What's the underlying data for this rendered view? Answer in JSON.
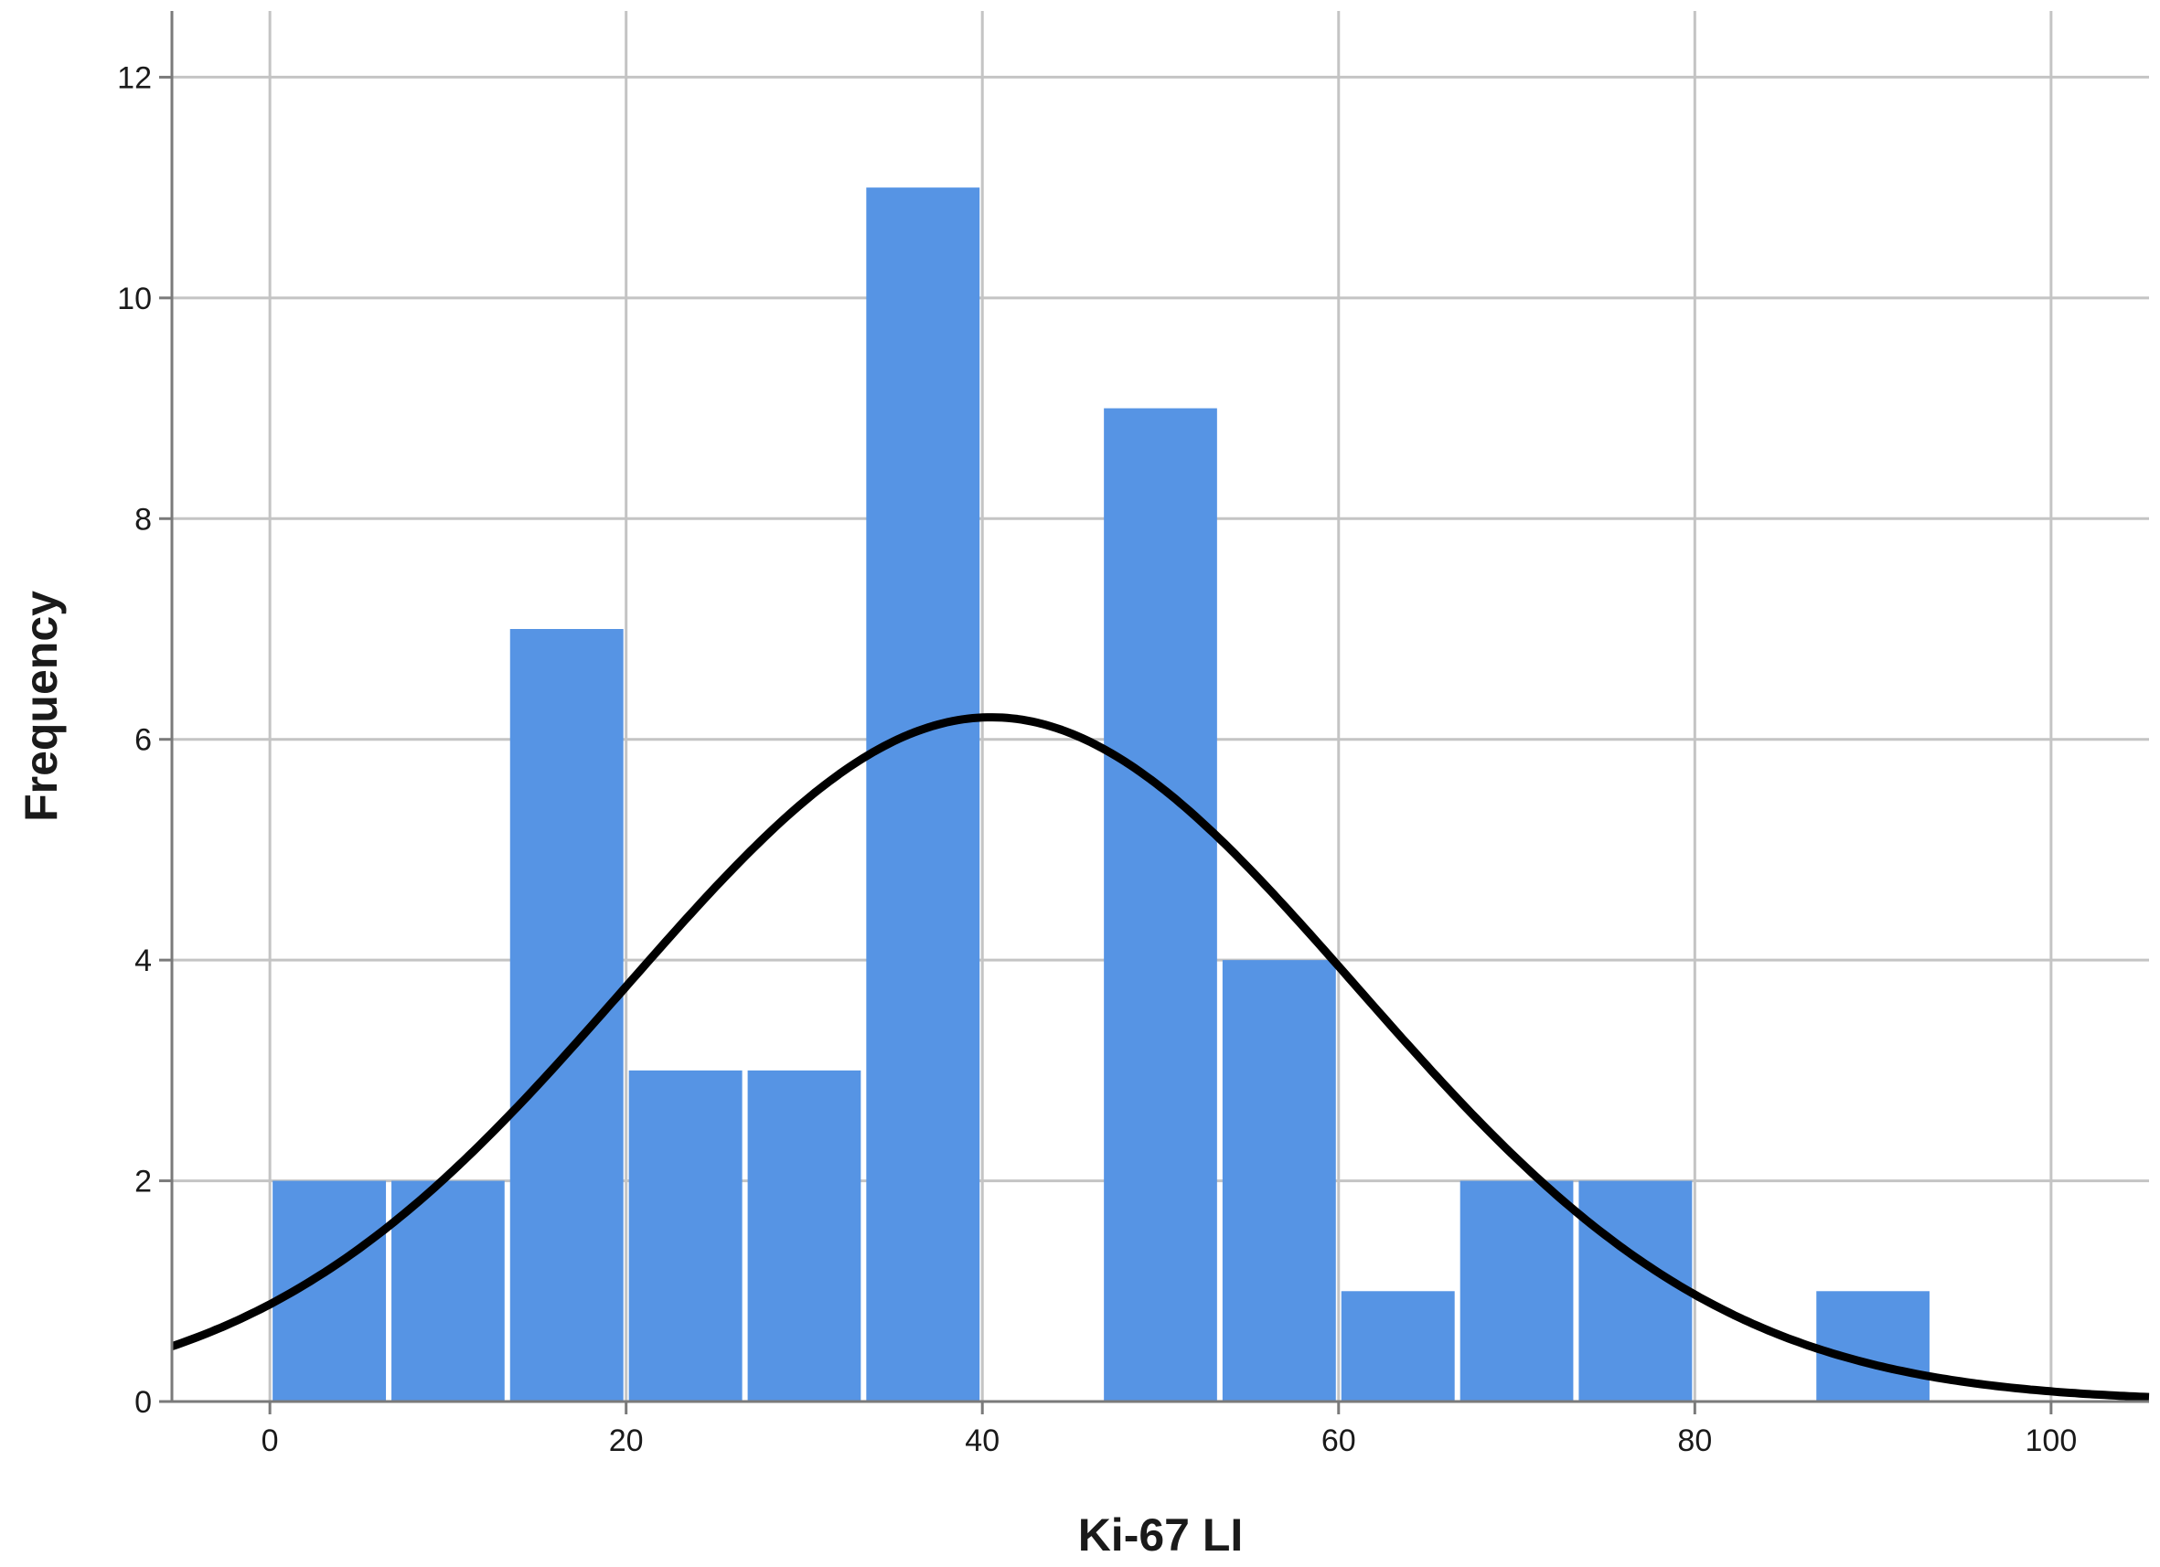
{
  "chart_data": {
    "type": "bar",
    "subtype": "histogram",
    "xlabel": "Ki-67 LI",
    "ylabel": "Frequency",
    "xlim": [
      -5.5,
      105.5
    ],
    "ylim": [
      0,
      12.6
    ],
    "xticks": [
      0,
      20,
      40,
      60,
      80,
      100
    ],
    "yticks": [
      0,
      2,
      4,
      6,
      8,
      10,
      12
    ],
    "grid": true,
    "bin_width": 6.67,
    "bins": [
      {
        "x0": 0,
        "x1": 6.67,
        "count": 2
      },
      {
        "x0": 6.67,
        "x1": 13.33,
        "count": 2
      },
      {
        "x0": 13.33,
        "x1": 20,
        "count": 7
      },
      {
        "x0": 20,
        "x1": 26.67,
        "count": 3
      },
      {
        "x0": 26.67,
        "x1": 33.33,
        "count": 3
      },
      {
        "x0": 33.33,
        "x1": 40,
        "count": 11
      },
      {
        "x0": 40,
        "x1": 46.67,
        "count": 0
      },
      {
        "x0": 46.67,
        "x1": 53.33,
        "count": 9
      },
      {
        "x0": 53.33,
        "x1": 60,
        "count": 4
      },
      {
        "x0": 60,
        "x1": 66.67,
        "count": 1
      },
      {
        "x0": 66.67,
        "x1": 73.33,
        "count": 2
      },
      {
        "x0": 73.33,
        "x1": 80,
        "count": 2
      },
      {
        "x0": 80,
        "x1": 86.67,
        "count": 0
      },
      {
        "x0": 86.67,
        "x1": 93.33,
        "count": 1
      }
    ],
    "normal_curve": {
      "mean": 40.5,
      "sd": 20.5,
      "peak": 6.2
    },
    "colors": {
      "bar": "#5694e4",
      "curve": "#000000",
      "grid": "#c4c4c4",
      "axis": "#7a7a7a"
    }
  }
}
